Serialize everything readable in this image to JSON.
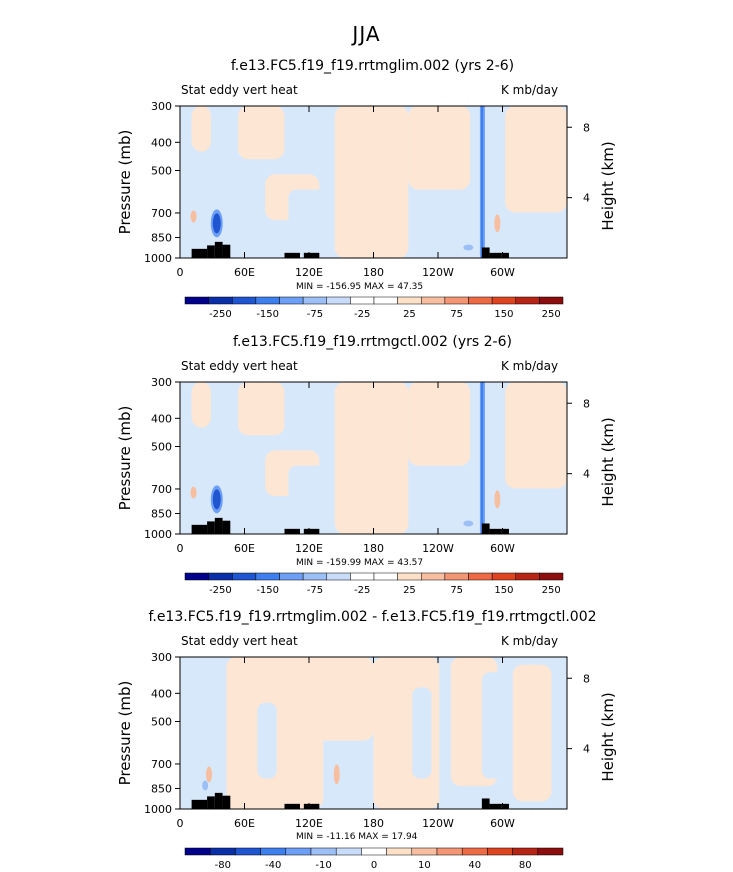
{
  "main_title": "JJA",
  "colors": {
    "bar_colors": [
      "#00008a",
      "#0a2ea8",
      "#1f55d0",
      "#3d7fee",
      "#6e9ff6",
      "#9cbff6",
      "#c8dcfa",
      "#ffffff",
      "#ffffff",
      "#fde0c8",
      "#f8bea0",
      "#f39674",
      "#ee6a44",
      "#df4420",
      "#b52415",
      "#8b0d0d"
    ],
    "topo": "#000000",
    "neg_light": "#d8e8fb",
    "pos_light": "#fde7d4"
  },
  "panels": [
    {
      "title": "f.e13.FC5.f19_f19.rrtmglim.002 (yrs 2-6)",
      "left_label": "Stat eddy vert heat",
      "units": "K mb/day",
      "y_axis_label": "Pressure (mb)",
      "right_axis_label": "Height (km)",
      "minmax": "MIN = -156.95   MAX =   47.35",
      "colorbar_labels": [
        "-250",
        "-150",
        "-75",
        "-25",
        "25",
        "75",
        "150",
        "250"
      ]
    },
    {
      "title": "f.e13.FC5.f19_f19.rrtmgctl.002 (yrs 2-6)",
      "left_label": "Stat eddy vert heat",
      "units": "K mb/day",
      "y_axis_label": "Pressure (mb)",
      "right_axis_label": "Height (km)",
      "minmax": "MIN = -159.99   MAX =   43.57",
      "colorbar_labels": [
        "-250",
        "-150",
        "-75",
        "-25",
        "25",
        "75",
        "150",
        "250"
      ]
    },
    {
      "title": "f.e13.FC5.f19_f19.rrtmglim.002 - f.e13.FC5.f19_f19.rrtmgctl.002",
      "left_label": "Stat eddy vert heat",
      "units": "K mb/day",
      "y_axis_label": "Pressure (mb)",
      "right_axis_label": "Height (km)",
      "minmax": "MIN = -11.16   MAX =   17.94",
      "colorbar_labels": [
        "-80",
        "-40",
        "-10",
        "0",
        "10",
        "40",
        "80"
      ]
    }
  ],
  "chart_data": [
    {
      "type": "heatmap",
      "title": "f.e13.FC5.f19_f19.rrtmglim.002 (yrs 2-6)",
      "xlabel": "",
      "ylabel": "Pressure (mb)",
      "y2label": "Height (km)",
      "x_ticks": [
        "0",
        "60E",
        "120E",
        "180",
        "120W",
        "60W"
      ],
      "y_ticks": [
        "300",
        "400",
        "500",
        "700",
        "850",
        "1000"
      ],
      "y2_ticks": [
        "4",
        "8"
      ],
      "min": -156.95,
      "max": 47.35,
      "levels": [
        -250,
        -200,
        -150,
        -100,
        -75,
        -50,
        -25,
        -10,
        10,
        25,
        50,
        75,
        100,
        150,
        200,
        250
      ]
    },
    {
      "type": "heatmap",
      "title": "f.e13.FC5.f19_f19.rrtmgctl.002 (yrs 2-6)",
      "xlabel": "",
      "ylabel": "Pressure (mb)",
      "y2label": "Height (km)",
      "x_ticks": [
        "0",
        "60E",
        "120E",
        "180",
        "120W",
        "60W"
      ],
      "y_ticks": [
        "300",
        "400",
        "500",
        "700",
        "850",
        "1000"
      ],
      "y2_ticks": [
        "4",
        "8"
      ],
      "min": -159.99,
      "max": 43.57,
      "levels": [
        -250,
        -200,
        -150,
        -100,
        -75,
        -50,
        -25,
        -10,
        10,
        25,
        50,
        75,
        100,
        150,
        200,
        250
      ]
    },
    {
      "type": "heatmap",
      "title": "f.e13.FC5.f19_f19.rrtmglim.002 - f.e13.FC5.f19_f19.rrtmgctl.002",
      "xlabel": "",
      "ylabel": "Pressure (mb)",
      "y2label": "Height (km)",
      "x_ticks": [
        "0",
        "60E",
        "120E",
        "180",
        "120W",
        "60W"
      ],
      "y_ticks": [
        "300",
        "400",
        "500",
        "700",
        "850",
        "1000"
      ],
      "y2_ticks": [
        "4",
        "8"
      ],
      "min": -11.16,
      "max": 17.94,
      "levels": [
        -100,
        -80,
        -60,
        -40,
        -20,
        -10,
        -5,
        0,
        5,
        10,
        20,
        40,
        60,
        80,
        100
      ]
    }
  ]
}
